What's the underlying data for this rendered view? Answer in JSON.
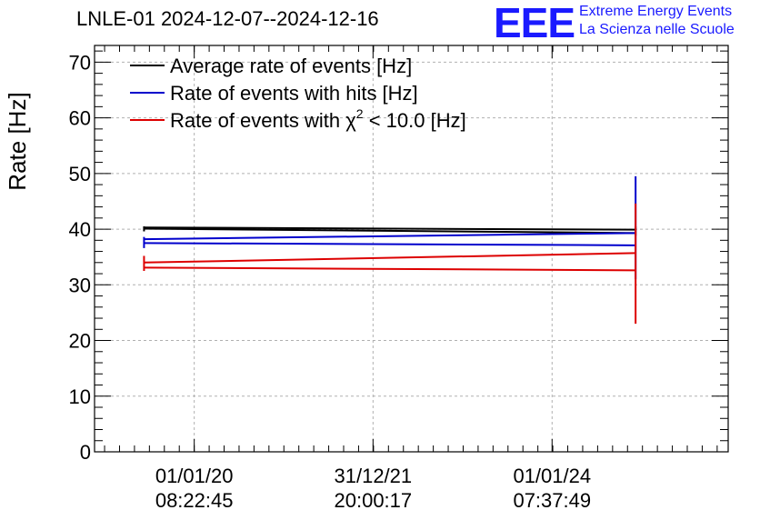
{
  "header": {
    "title": "LNLE-01 2024-12-07--2024-12-16",
    "logo_text": "EEE",
    "logo_line1": "Extreme Energy Events",
    "logo_line2": "La Scienza nelle Scuole"
  },
  "colors": {
    "average": "#000000",
    "hits": "#0000cc",
    "chi2": "#dd0000",
    "logo": "#1a1aff"
  },
  "chart_data": {
    "type": "line",
    "ylabel": "Rate [Hz]",
    "xlabel": "",
    "ylim": [
      0,
      73
    ],
    "xlim": [
      "2018-11-20",
      "2025-12-20"
    ],
    "y_ticks": [
      0,
      10,
      20,
      30,
      40,
      50,
      60,
      70
    ],
    "x_ticks": [
      {
        "date": "2020-01-01",
        "line1": "01/01/20",
        "line2": "08:22:45"
      },
      {
        "date": "2021-12-31",
        "line1": "31/12/21",
        "line2": "20:00:17"
      },
      {
        "date": "2024-01-01",
        "line1": "01/01/24",
        "line2": "07:37:49"
      }
    ],
    "grid": true,
    "legend_position": "top-left",
    "legend": [
      {
        "key": "average",
        "label_pre": "Average rate of events [Hz]"
      },
      {
        "key": "hits",
        "label_pre": "Rate of events with hits [Hz]"
      },
      {
        "key": "chi2",
        "label_pre": "Rate of events with ",
        "label_sym": "χ",
        "label_sup": "2",
        "label_post": " < 10.0 [Hz]"
      }
    ],
    "series": [
      {
        "key": "average",
        "x": [
          "2019-06-10",
          "2024-12-07"
        ],
        "upper": [
          40.3,
          39.9
        ],
        "lower": [
          40.1,
          39.3
        ],
        "error_bars": [
          {
            "x": "2019-06-10",
            "low": 39.6,
            "high": 40.5
          },
          {
            "x": "2024-12-07",
            "low": 38.8,
            "high": 40.5
          }
        ]
      },
      {
        "key": "hits",
        "x": [
          "2019-06-10",
          "2024-12-07"
        ],
        "upper": [
          38.2,
          39.3
        ],
        "lower": [
          37.5,
          37.1
        ],
        "error_bars": [
          {
            "x": "2019-06-10",
            "low": 36.6,
            "high": 38.6
          },
          {
            "x": "2024-12-07",
            "low": 31.0,
            "high": 49.5
          }
        ]
      },
      {
        "key": "chi2",
        "x": [
          "2019-06-10",
          "2024-12-07"
        ],
        "upper": [
          34.0,
          35.7
        ],
        "lower": [
          33.1,
          32.6
        ],
        "error_bars": [
          {
            "x": "2019-06-10",
            "low": 32.5,
            "high": 35.2
          },
          {
            "x": "2024-12-07",
            "low": 23.0,
            "high": 44.6
          }
        ]
      }
    ]
  }
}
